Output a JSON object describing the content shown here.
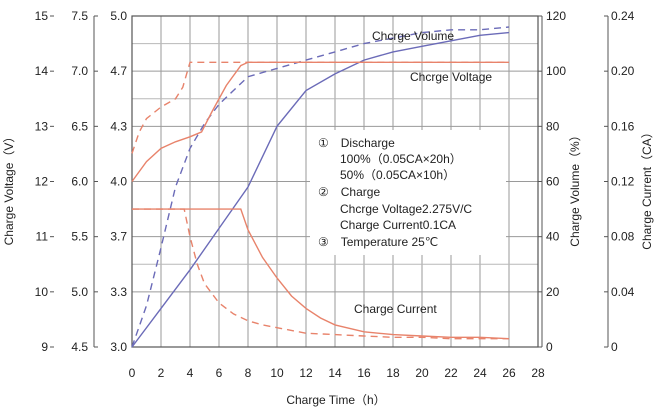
{
  "chart_data": {
    "type": "line",
    "xlabel": "Charge Time（h）",
    "x_ticks": [
      "0",
      "2",
      "4",
      "6",
      "8",
      "10",
      "12",
      "14",
      "16",
      "18",
      "20",
      "22",
      "24",
      "26",
      "28"
    ],
    "xlim": [
      0,
      28
    ],
    "axes": {
      "charge_voltage_12v": {
        "label": "Charge Voltage（V）",
        "ticks": [
          "9",
          "10",
          "11",
          "12",
          "13",
          "14",
          "15"
        ],
        "range": [
          9,
          15
        ]
      },
      "charge_voltage_6v": {
        "ticks": [
          "4.5",
          "5.0",
          "5.5",
          "6.0",
          "6.5",
          "7.0",
          "7.5"
        ],
        "range": [
          4.5,
          7.5
        ]
      },
      "charge_voltage_cell": {
        "ticks": [
          "3.0",
          "3.3",
          "3.7",
          "4.0",
          "4.3",
          "4.7",
          "5.0"
        ],
        "range": [
          3.0,
          5.0
        ]
      },
      "charge_volume": {
        "label": "Charge Volume（%）",
        "ticks": [
          "0",
          "20",
          "40",
          "60",
          "80",
          "100",
          "120"
        ],
        "range": [
          0,
          120
        ]
      },
      "charge_current": {
        "label": "Charge Current（CA）",
        "ticks": [
          "0",
          "0.04",
          "0.08",
          "0.12",
          "0.16",
          "0.20",
          "0.24"
        ],
        "range": [
          0,
          0.24
        ]
      }
    },
    "series": [
      {
        "name": "Chcrge Volume",
        "axis": "charge_volume",
        "style": "solid",
        "color": "#6b6bb8",
        "x": [
          0,
          2,
          4,
          6,
          8,
          10,
          12,
          14,
          16,
          18,
          20,
          22,
          24,
          26
        ],
        "y": [
          0,
          14,
          28,
          43,
          58,
          80,
          93,
          99,
          104,
          107,
          109,
          111,
          113,
          114
        ]
      },
      {
        "name": "Chcrge Volume",
        "axis": "charge_volume",
        "style": "dashed",
        "color": "#6b6bb8",
        "x": [
          0,
          1,
          2,
          3,
          4,
          5,
          6,
          7,
          8,
          10,
          12,
          14,
          16,
          18,
          20,
          22,
          24,
          26
        ],
        "y": [
          0,
          15,
          36,
          58,
          72,
          81,
          88,
          93,
          98,
          101,
          104,
          107,
          110,
          112,
          114,
          115,
          115,
          116
        ]
      },
      {
        "name": "Chcrge Voltage",
        "axis": "charge_voltage_cell",
        "style": "solid",
        "color": "#e8836b",
        "x": [
          0,
          1,
          2,
          3,
          4,
          4.8,
          5.5,
          6.5,
          7.5,
          8,
          26
        ],
        "y": [
          4.0,
          4.12,
          4.2,
          4.24,
          4.27,
          4.3,
          4.42,
          4.58,
          4.7,
          4.72,
          4.72
        ]
      },
      {
        "name": "Chcrge Voltage",
        "axis": "charge_voltage_cell",
        "style": "dashed",
        "color": "#e8836b",
        "x": [
          0,
          0.5,
          1,
          2,
          3,
          3.5,
          4,
          26
        ],
        "y": [
          4.17,
          4.3,
          4.38,
          4.45,
          4.5,
          4.57,
          4.72,
          4.72
        ]
      },
      {
        "name": "Charge Current",
        "axis": "charge_current",
        "style": "solid",
        "color": "#e8836b",
        "x": [
          0,
          7.5,
          8,
          9,
          10,
          11,
          12,
          13,
          14,
          16,
          18,
          20,
          22,
          24,
          26
        ],
        "y": [
          0.1,
          0.1,
          0.085,
          0.065,
          0.05,
          0.037,
          0.028,
          0.021,
          0.016,
          0.011,
          0.009,
          0.008,
          0.007,
          0.007,
          0.006
        ]
      },
      {
        "name": "Charge Current",
        "axis": "charge_current",
        "style": "dashed",
        "color": "#e8836b",
        "x": [
          0,
          3.6,
          4,
          4.5,
          5,
          6,
          7,
          8,
          9,
          10,
          12,
          14,
          16,
          18,
          20,
          22,
          24,
          26
        ],
        "y": [
          0.1,
          0.1,
          0.08,
          0.06,
          0.046,
          0.032,
          0.024,
          0.019,
          0.016,
          0.014,
          0.01,
          0.009,
          0.008,
          0.007,
          0.007,
          0.006,
          0.006,
          0.006
        ]
      }
    ],
    "curve_labels": {
      "volume": "Chcrge Volume",
      "voltage": "Chcrge Voltage",
      "current": "Charge Current"
    },
    "annotations": [
      "①　Discharge",
      "100%（0.05CA×20h）",
      "50%（0.05CA×10h）",
      "②　Charge",
      "Chcrge Voltage2.275V/C",
      "Charge Current0.1CA",
      "③　Temperature 25℃"
    ],
    "grid": true
  }
}
